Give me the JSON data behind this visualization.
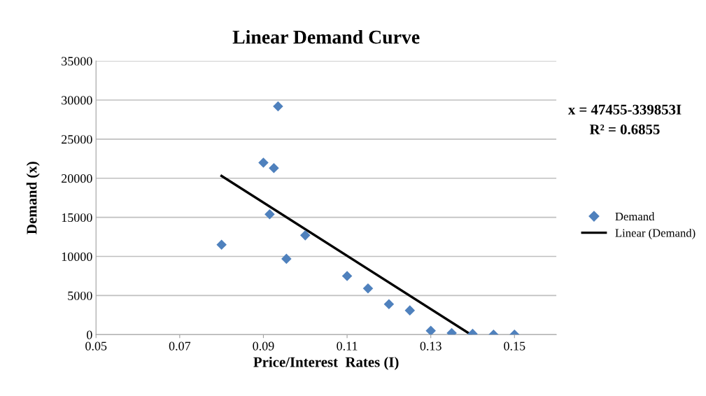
{
  "chart_data": {
    "type": "scatter",
    "title": "Linear Demand Curve",
    "xlabel": "Price/Interest  Rates (I)",
    "ylabel": "Demand (x)",
    "annotations": [
      "x = 47455-339853I",
      "R² = 0.6855"
    ],
    "series": [
      {
        "name": "Demand",
        "color": "#4f81bd",
        "marker": "diamond",
        "x": [
          0.08,
          0.09,
          0.0925,
          0.0935,
          0.0915,
          0.0955,
          0.1,
          0.11,
          0.115,
          0.12,
          0.125,
          0.13,
          0.135,
          0.14,
          0.145,
          0.15
        ],
        "values": [
          11500,
          22000,
          21300,
          29200,
          15400,
          9700,
          12700,
          7500,
          5900,
          3900,
          3100,
          500,
          200,
          100,
          0,
          0
        ]
      },
      {
        "name": "Linear (Demand)",
        "type": "line",
        "color": "#000000",
        "marker": "none",
        "x": [
          0.08,
          0.1396
        ],
        "values": [
          20300,
          0
        ]
      }
    ],
    "xlim": [
      0.05,
      0.16
    ],
    "xticks": [
      0.05,
      0.07,
      0.09,
      0.11,
      0.13,
      0.15
    ],
    "ylim": [
      0,
      35000
    ],
    "yticks": [
      0,
      5000,
      10000,
      15000,
      20000,
      25000,
      30000,
      35000
    ],
    "grid": "y",
    "legend": "right"
  }
}
